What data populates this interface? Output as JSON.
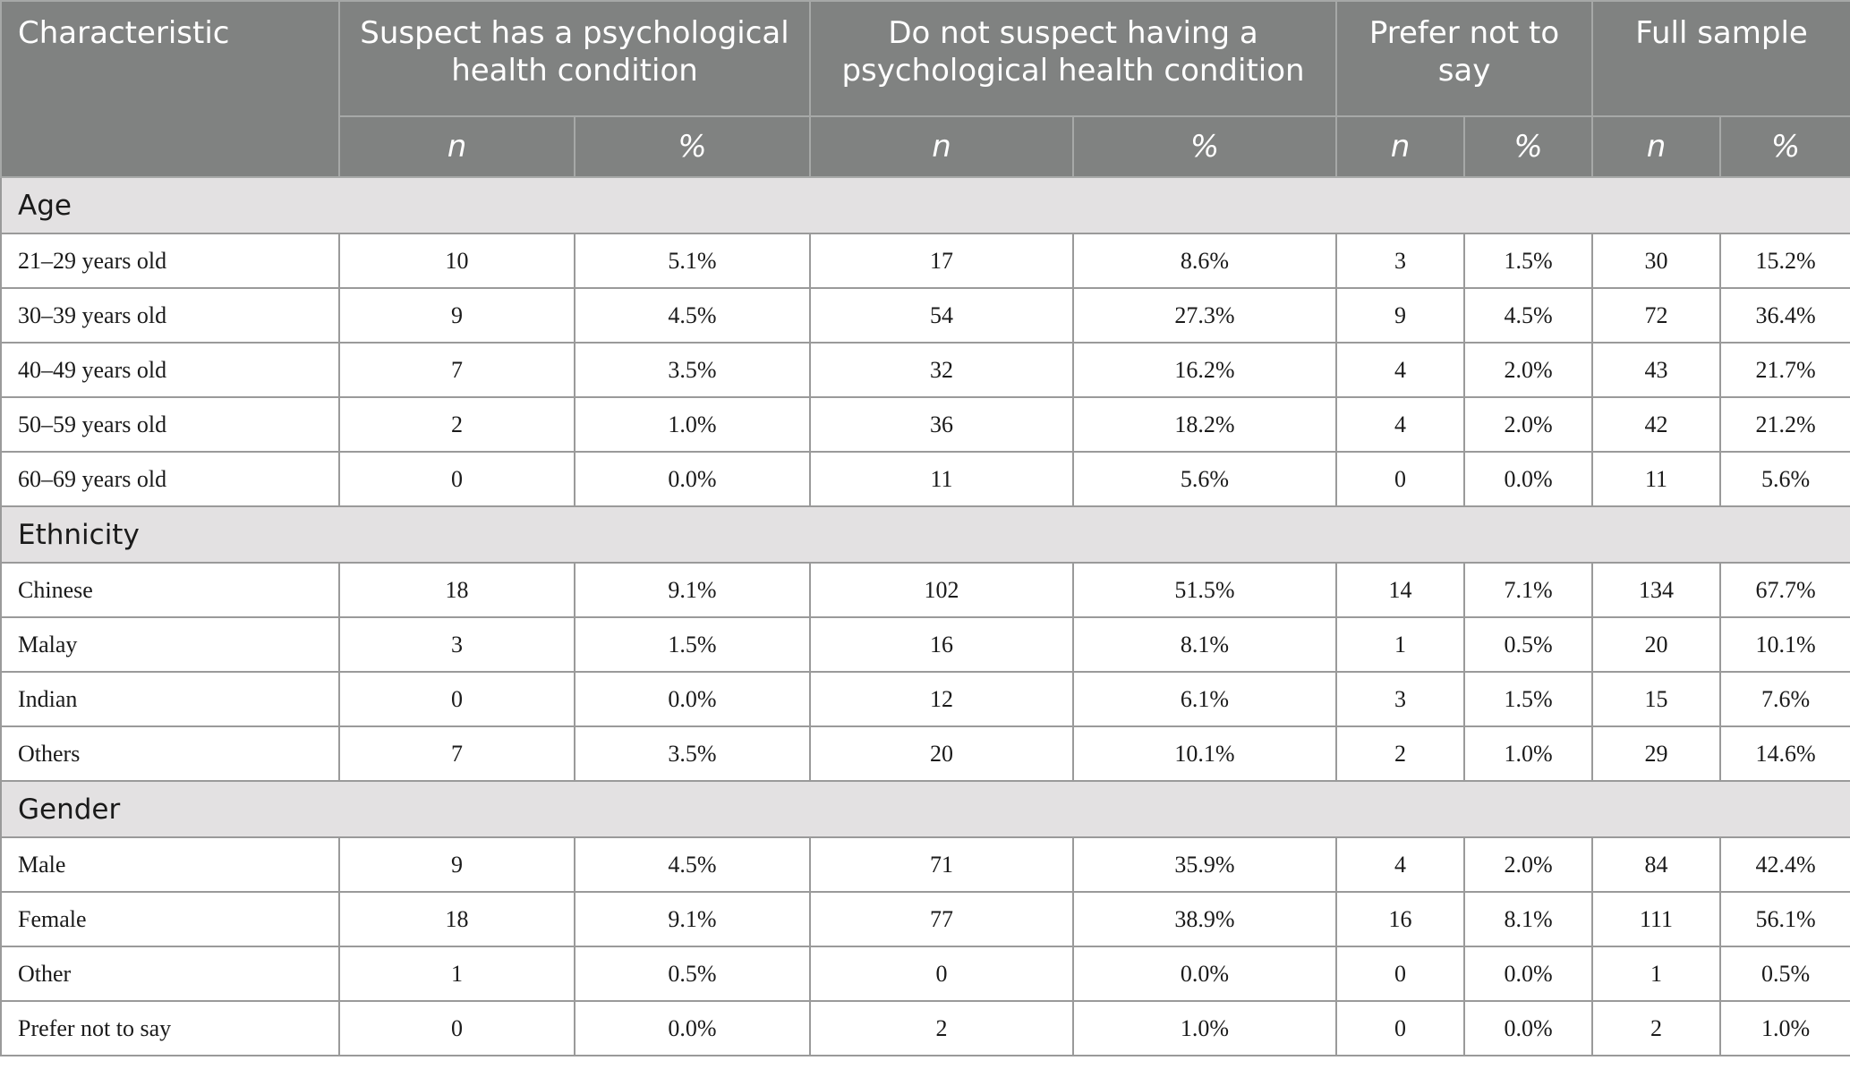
{
  "header": {
    "characteristic": "Characteristic",
    "groups": [
      "Suspect has a psychological health condition",
      "Do not suspect having a psychological health condition",
      "Prefer not to say",
      "Full sample"
    ],
    "n_label": "n",
    "pct_label": "%"
  },
  "sections": [
    {
      "title": "Age",
      "rows": [
        {
          "label": "21–29 years old",
          "cells": [
            "10",
            "5.1%",
            "17",
            "8.6%",
            "3",
            "1.5%",
            "30",
            "15.2%"
          ]
        },
        {
          "label": "30–39 years old",
          "cells": [
            "9",
            "4.5%",
            "54",
            "27.3%",
            "9",
            "4.5%",
            "72",
            "36.4%"
          ]
        },
        {
          "label": "40–49 years old",
          "cells": [
            "7",
            "3.5%",
            "32",
            "16.2%",
            "4",
            "2.0%",
            "43",
            "21.7%"
          ]
        },
        {
          "label": "50–59 years old",
          "cells": [
            "2",
            "1.0%",
            "36",
            "18.2%",
            "4",
            "2.0%",
            "42",
            "21.2%"
          ]
        },
        {
          "label": "60–69 years old",
          "cells": [
            "0",
            "0.0%",
            "11",
            "5.6%",
            "0",
            "0.0%",
            "11",
            "5.6%"
          ]
        }
      ]
    },
    {
      "title": "Ethnicity",
      "rows": [
        {
          "label": "Chinese",
          "cells": [
            "18",
            "9.1%",
            "102",
            "51.5%",
            "14",
            "7.1%",
            "134",
            "67.7%"
          ]
        },
        {
          "label": "Malay",
          "cells": [
            "3",
            "1.5%",
            "16",
            "8.1%",
            "1",
            "0.5%",
            "20",
            "10.1%"
          ]
        },
        {
          "label": "Indian",
          "cells": [
            "0",
            "0.0%",
            "12",
            "6.1%",
            "3",
            "1.5%",
            "15",
            "7.6%"
          ]
        },
        {
          "label": "Others",
          "cells": [
            "7",
            "3.5%",
            "20",
            "10.1%",
            "2",
            "1.0%",
            "29",
            "14.6%"
          ]
        }
      ]
    },
    {
      "title": "Gender",
      "rows": [
        {
          "label": "Male",
          "cells": [
            "9",
            "4.5%",
            "71",
            "35.9%",
            "4",
            "2.0%",
            "84",
            "42.4%"
          ]
        },
        {
          "label": "Female",
          "cells": [
            "18",
            "9.1%",
            "77",
            "38.9%",
            "16",
            "8.1%",
            "111",
            "56.1%"
          ]
        },
        {
          "label": "Other",
          "cells": [
            "1",
            "0.5%",
            "0",
            "0.0%",
            "0",
            "0.0%",
            "1",
            "0.5%"
          ]
        },
        {
          "label": "Prefer not to say",
          "cells": [
            "0",
            "0.0%",
            "2",
            "1.0%",
            "0",
            "0.0%",
            "2",
            "1.0%"
          ]
        }
      ]
    }
  ]
}
